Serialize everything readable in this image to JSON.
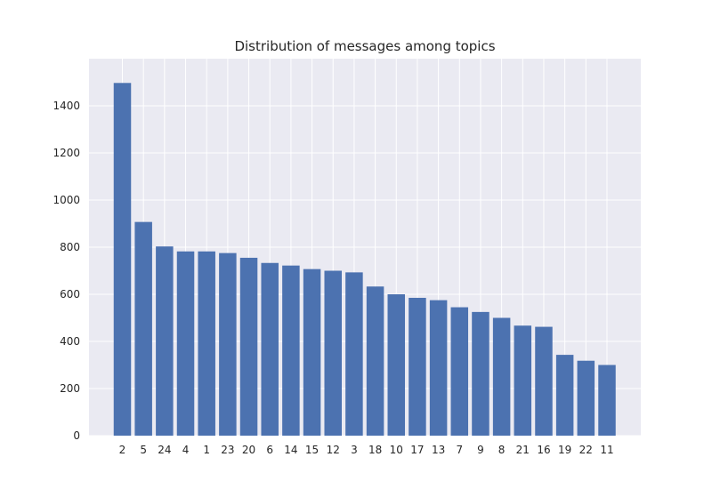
{
  "chart_data": {
    "type": "bar",
    "title": "Distribution of messages among topics",
    "xlabel": "",
    "ylabel": "",
    "categories": [
      "2",
      "5",
      "24",
      "4",
      "1",
      "23",
      "20",
      "6",
      "14",
      "15",
      "12",
      "3",
      "18",
      "10",
      "17",
      "13",
      "7",
      "9",
      "8",
      "21",
      "16",
      "19",
      "22",
      "11"
    ],
    "values": [
      1497,
      907,
      803,
      782,
      782,
      775,
      755,
      733,
      722,
      707,
      700,
      693,
      633,
      600,
      585,
      575,
      545,
      525,
      500,
      467,
      462,
      343,
      318,
      300
    ],
    "ylim": [
      0,
      1600
    ],
    "yticks": [
      0,
      200,
      400,
      600,
      800,
      1000,
      1200,
      1400
    ],
    "ytick_labels": [
      "0",
      "200",
      "400",
      "600",
      "800",
      "1000",
      "1200",
      "1400"
    ],
    "grid": true,
    "bar_color": "#4c72b0",
    "background_color": "#eaeaf2",
    "grid_color": "#ffffff"
  }
}
